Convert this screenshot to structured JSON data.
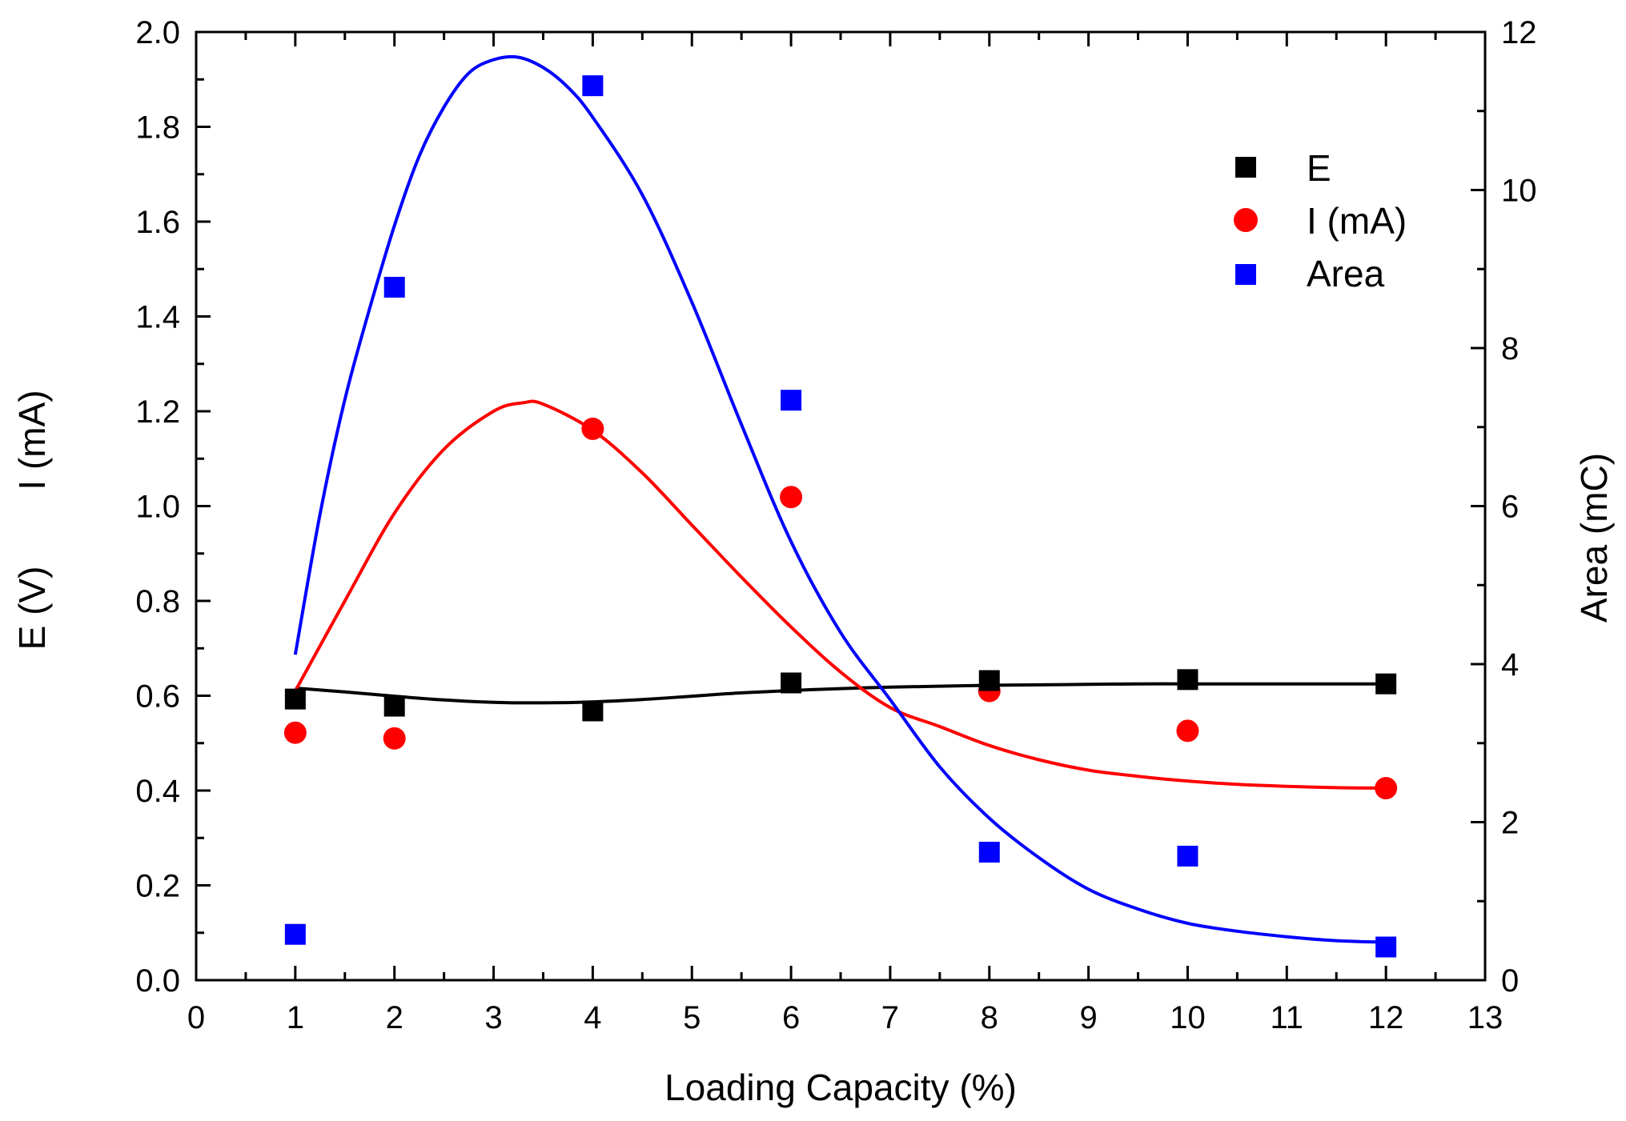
{
  "chart_data": {
    "type": "scatter",
    "xlabel": "Loading Capacity (%)",
    "ylabel_left": {
      "part1": "E (V)",
      "part2": "I (mA)"
    },
    "ylabel_right": "Area (mC)",
    "xlim": [
      0,
      13
    ],
    "ylim_left": [
      0,
      2.0
    ],
    "ylim_right": [
      0,
      12
    ],
    "x_ticks": [
      0,
      1,
      2,
      3,
      4,
      5,
      6,
      7,
      8,
      9,
      10,
      11,
      12,
      13
    ],
    "x_tick_labels": [
      "0",
      "1",
      "2",
      "3",
      "4",
      "5",
      "6",
      "7",
      "8",
      "9",
      "10",
      "11",
      "12",
      "13"
    ],
    "y_left_ticks": [
      0,
      0.2,
      0.4,
      0.6,
      0.8,
      1.0,
      1.2,
      1.4,
      1.6,
      1.8,
      2.0
    ],
    "y_left_tick_labels": [
      "0.0",
      "0.2",
      "0.4",
      "0.6",
      "0.8",
      "1.0",
      "1.2",
      "1.4",
      "1.6",
      "1.8",
      "2.0"
    ],
    "y_right_ticks": [
      0,
      2,
      4,
      6,
      8,
      10,
      12
    ],
    "y_right_tick_labels": [
      "0",
      "2",
      "4",
      "6",
      "8",
      "10",
      "12"
    ],
    "legend_position": "top-right",
    "grid": false,
    "series": [
      {
        "name": "E",
        "axis": "left",
        "marker": "square",
        "color": "#000000",
        "x": [
          1,
          2,
          4,
          6,
          8,
          10,
          12
        ],
        "y": [
          0.593,
          0.578,
          0.568,
          0.627,
          0.632,
          0.634,
          0.625
        ],
        "fit_x": [
          1,
          1.5,
          2,
          2.5,
          3,
          3.5,
          4,
          4.5,
          5,
          5.5,
          6,
          6.5,
          7,
          7.5,
          8,
          8.5,
          9,
          9.5,
          10,
          10.5,
          11,
          11.5,
          12
        ],
        "fit_y": [
          0.616,
          0.608,
          0.599,
          0.591,
          0.586,
          0.585,
          0.587,
          0.592,
          0.599,
          0.606,
          0.611,
          0.615,
          0.618,
          0.62,
          0.622,
          0.623,
          0.624,
          0.625,
          0.625,
          0.625,
          0.625,
          0.625,
          0.625
        ]
      },
      {
        "name": "I (mA)",
        "axis": "left",
        "marker": "circle",
        "color": "#ff0000",
        "x": [
          1,
          2,
          4,
          6,
          8,
          10,
          12
        ],
        "y": [
          0.522,
          0.51,
          1.163,
          1.019,
          0.61,
          0.526,
          0.405
        ],
        "fit_x": [
          1,
          1.5,
          2,
          2.5,
          3,
          3.3,
          3.5,
          4,
          4.5,
          5,
          5.5,
          6,
          6.5,
          7,
          7.5,
          8,
          8.5,
          9,
          9.5,
          10,
          10.5,
          11,
          11.5,
          12
        ],
        "fit_y": [
          0.61,
          0.8,
          0.985,
          1.12,
          1.2,
          1.218,
          1.215,
          1.16,
          1.07,
          0.96,
          0.85,
          0.745,
          0.65,
          0.575,
          0.535,
          0.495,
          0.465,
          0.443,
          0.43,
          0.42,
          0.413,
          0.409,
          0.406,
          0.405
        ]
      },
      {
        "name": "Area",
        "axis": "right",
        "marker": "square",
        "color": "#0000ff",
        "x": [
          1,
          2,
          4,
          6,
          8,
          10,
          12
        ],
        "y": [
          0.58,
          8.77,
          11.32,
          7.34,
          1.62,
          1.57,
          0.42
        ],
        "fit_x": [
          1,
          1.25,
          1.5,
          1.75,
          2,
          2.25,
          2.5,
          2.75,
          3,
          3.25,
          3.5,
          3.75,
          4,
          4.5,
          5,
          5.5,
          6,
          6.5,
          7,
          7.5,
          8,
          8.5,
          9,
          9.5,
          10,
          10.5,
          11,
          11.5,
          12
        ],
        "fit_y": [
          4.12,
          5.9,
          7.35,
          8.5,
          9.55,
          10.43,
          11.05,
          11.48,
          11.65,
          11.68,
          11.55,
          11.3,
          10.92,
          9.94,
          8.58,
          7.03,
          5.55,
          4.4,
          3.55,
          2.7,
          2.05,
          1.55,
          1.15,
          0.9,
          0.72,
          0.62,
          0.55,
          0.5,
          0.48
        ]
      }
    ]
  }
}
